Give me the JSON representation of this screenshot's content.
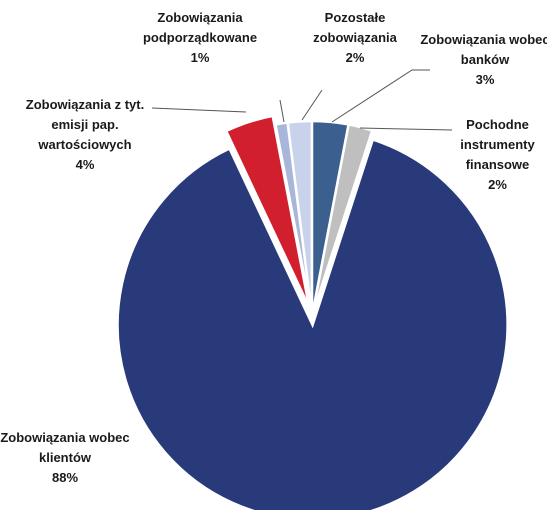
{
  "chart_data": {
    "type": "pie",
    "categories": [
      "Zobowiązania wobec banków",
      "Pochodne instrumenty finansowe",
      "Zobowiązania wobec klientów",
      "Zobowiązania z tyt. emisji pap. wartościowych",
      "Zobowiązania podporządkowane",
      "Pozostałe zobowiązania"
    ],
    "values": [
      3,
      2,
      88,
      4,
      1,
      2
    ],
    "value_labels": [
      "3%",
      "2%",
      "88%",
      "4%",
      "1%",
      "2%"
    ],
    "colors": [
      "#3b5f8e",
      "#bfbfbf",
      "#283a7a",
      "#d11f2e",
      "#a8b7d9",
      "#c8d2ea"
    ],
    "exploded": [
      false,
      false,
      true,
      true,
      false,
      false
    ]
  }
}
